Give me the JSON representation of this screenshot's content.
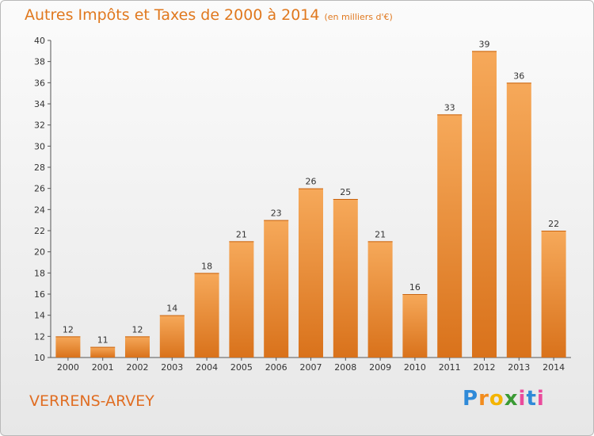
{
  "title": "Autres Impôts et Taxes de 2000 à 2014",
  "unit": "(en milliers d'€)",
  "town": "VERRENS-ARVEY",
  "logo": "Proxiti",
  "colors": {
    "bar_top": "#f6a95a",
    "bar_bottom": "#d9721b",
    "text_orange": "#e0781e"
  },
  "chart_data": {
    "type": "bar",
    "categories": [
      "2000",
      "2001",
      "2002",
      "2003",
      "2004",
      "2005",
      "2006",
      "2007",
      "2008",
      "2009",
      "2010",
      "2011",
      "2012",
      "2013",
      "2014"
    ],
    "values": [
      12,
      11,
      12,
      14,
      18,
      21,
      23,
      26,
      25,
      21,
      16,
      33,
      39,
      36,
      22
    ],
    "ylim": [
      10,
      40
    ],
    "yticks": [
      10,
      12,
      14,
      16,
      18,
      20,
      22,
      24,
      26,
      28,
      30,
      32,
      34,
      36,
      38,
      40
    ],
    "data_labels": true,
    "grid": false
  }
}
